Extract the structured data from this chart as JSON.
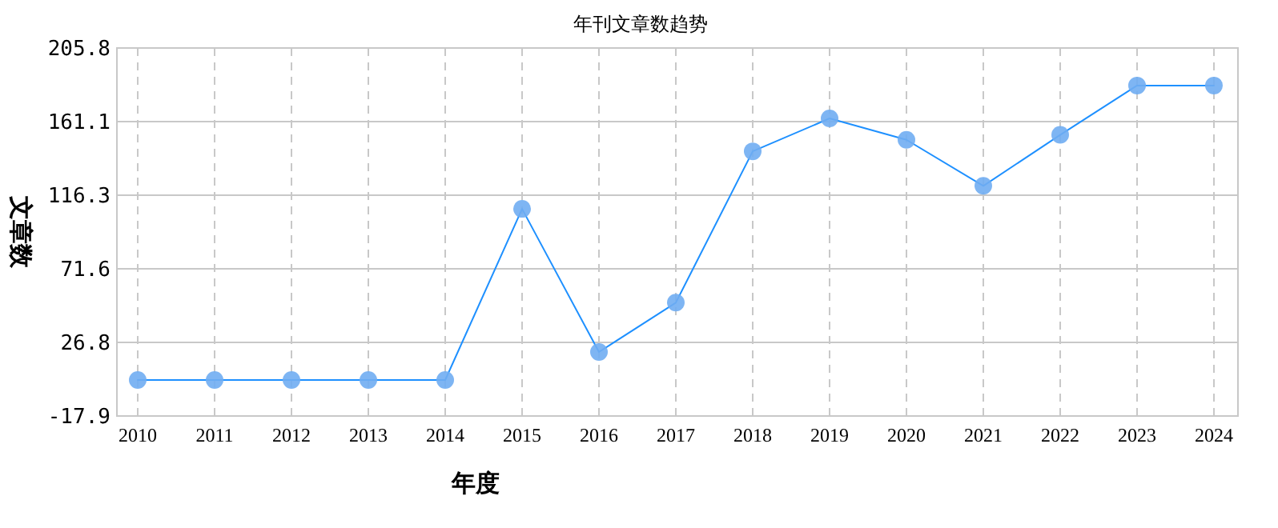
{
  "chart_data": {
    "type": "line",
    "title": "年刊文章数趋势",
    "xlabel": "年度",
    "ylabel": "文章数",
    "categories": [
      "2010",
      "2011",
      "2012",
      "2013",
      "2014",
      "2015",
      "2016",
      "2017",
      "2018",
      "2019",
      "2020",
      "2021",
      "2022",
      "2023",
      "2024"
    ],
    "series": [
      {
        "color": "#1e90ff",
        "values": [
          4,
          4,
          4,
          4,
          4,
          108,
          21,
          51,
          143,
          163,
          150,
          122,
          153,
          183,
          183
        ]
      }
    ],
    "ylim": [
      -17.9,
      205.8
    ],
    "yticks": [
      -17.9,
      26.8,
      71.6,
      116.3,
      161.1,
      205.8
    ],
    "grid": true,
    "marker": "circle",
    "line_style": "solid"
  }
}
